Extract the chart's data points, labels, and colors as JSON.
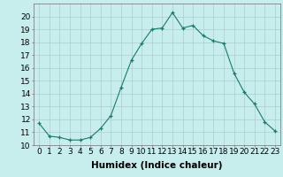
{
  "x": [
    0,
    1,
    2,
    3,
    4,
    5,
    6,
    7,
    8,
    9,
    10,
    11,
    12,
    13,
    14,
    15,
    16,
    17,
    18,
    19,
    20,
    21,
    22,
    23
  ],
  "y": [
    11.7,
    10.7,
    10.6,
    10.4,
    10.4,
    10.6,
    11.3,
    12.3,
    14.5,
    16.6,
    17.9,
    19.0,
    19.1,
    20.3,
    19.1,
    19.3,
    18.5,
    18.1,
    17.9,
    15.6,
    14.1,
    13.2,
    11.8,
    11.1
  ],
  "xlabel": "Humidex (Indice chaleur)",
  "ylim": [
    10,
    21
  ],
  "xlim": [
    -0.5,
    23.5
  ],
  "yticks": [
    10,
    11,
    12,
    13,
    14,
    15,
    16,
    17,
    18,
    19,
    20
  ],
  "xticks": [
    0,
    1,
    2,
    3,
    4,
    5,
    6,
    7,
    8,
    9,
    10,
    11,
    12,
    13,
    14,
    15,
    16,
    17,
    18,
    19,
    20,
    21,
    22,
    23
  ],
  "line_color": "#1a7a6a",
  "marker": "+",
  "bg_color": "#c8eded",
  "grid_color": "#aacece",
  "spine_color": "#707070",
  "xlabel_fontsize": 7.5,
  "tick_fontsize": 6.5
}
